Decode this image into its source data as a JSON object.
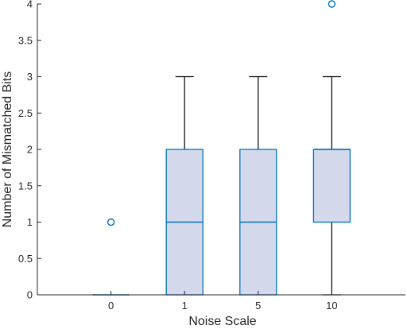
{
  "chart_data": {
    "type": "box",
    "xlabel": "Noise Scale",
    "ylabel": "Number of Mismatched Bits",
    "ylim": [
      0,
      4
    ],
    "yticks": [
      "0",
      "0.5",
      "1",
      "1.5",
      "2",
      "2.5",
      "3",
      "3.5",
      "4"
    ],
    "grid": false,
    "categories": [
      "0",
      "1",
      "5",
      "10"
    ],
    "boxes": [
      {
        "category": "0",
        "min": 0,
        "q1": 0,
        "median": 0,
        "q3": 0,
        "max": 0,
        "outliers": [
          1
        ]
      },
      {
        "category": "1",
        "min": 0,
        "q1": 0,
        "median": 1,
        "q3": 2,
        "max": 3,
        "outliers": []
      },
      {
        "category": "5",
        "min": 0,
        "q1": 0,
        "median": 1,
        "q3": 2,
        "max": 3,
        "outliers": []
      },
      {
        "category": "10",
        "min": 0,
        "q1": 1,
        "median": 2,
        "q3": 2,
        "max": 3,
        "outliers": [
          4
        ]
      }
    ],
    "colors": {
      "box_edge": "#0072BD",
      "box_fill": "#D4DAEB",
      "whisker": "#000000",
      "axis": "#262626",
      "outlier": "#0072BD"
    }
  }
}
